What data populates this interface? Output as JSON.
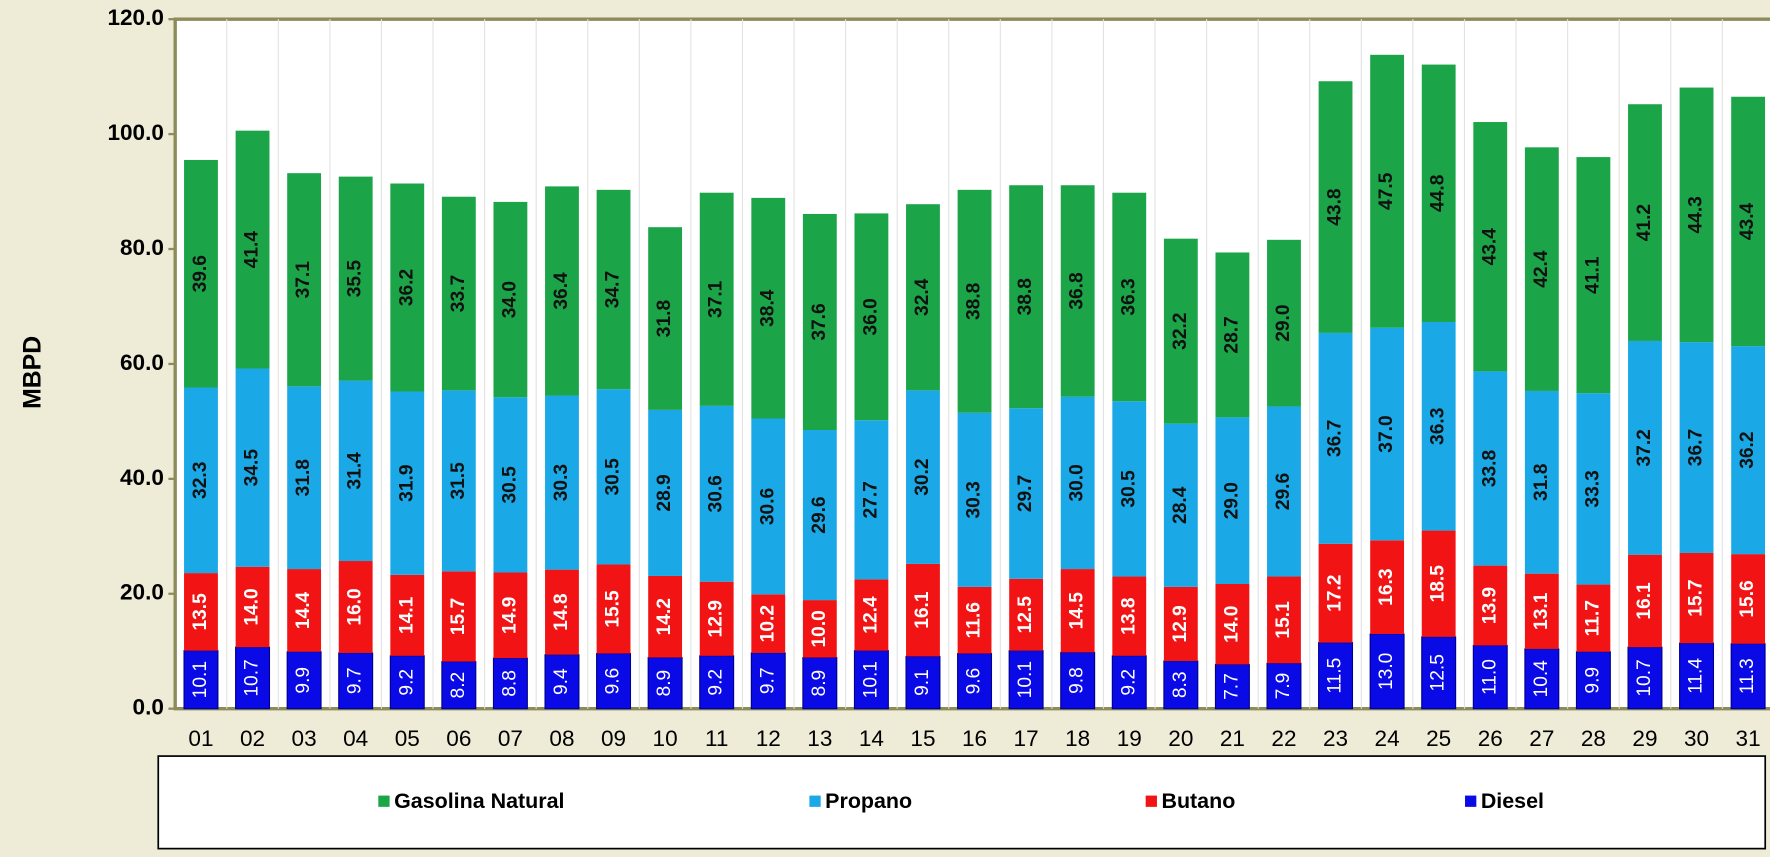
{
  "chart_data": {
    "type": "stacked_bar",
    "y_label": "MBPD",
    "categories": [
      "01",
      "02",
      "03",
      "04",
      "05",
      "06",
      "07",
      "08",
      "09",
      "10",
      "11",
      "12",
      "13",
      "14",
      "15",
      "16",
      "17",
      "18",
      "19",
      "20",
      "21",
      "22",
      "23",
      "24",
      "25",
      "26",
      "27",
      "28",
      "29",
      "30",
      "31"
    ],
    "ylim": [
      0,
      120
    ],
    "yticks": [
      {
        "value": 0,
        "label": "0.0"
      },
      {
        "value": 20,
        "label": "20.0"
      },
      {
        "value": 40,
        "label": "40.0"
      },
      {
        "value": 60,
        "label": "60.0"
      },
      {
        "value": 80,
        "label": "80.0"
      },
      {
        "value": 100,
        "label": "100.0"
      },
      {
        "value": 120,
        "label": "120.0"
      }
    ],
    "series": [
      {
        "name": "Diesel",
        "color": "#0a0ae6",
        "values": [
          10.1,
          10.7,
          9.9,
          9.7,
          9.2,
          8.2,
          8.8,
          9.4,
          9.6,
          8.9,
          9.2,
          9.7,
          8.9,
          10.1,
          9.1,
          9.6,
          10.1,
          9.8,
          9.2,
          8.3,
          7.7,
          7.9,
          11.5,
          13.0,
          12.5,
          11.0,
          10.4,
          9.9,
          10.7,
          11.4,
          11.3
        ],
        "value_labels": [
          "10.1",
          "10.7",
          "9.9",
          "9.7",
          "9.2",
          "8.2",
          "8.8",
          "9.4",
          "9.6",
          "8.9",
          "9.2",
          "9.7",
          "8.9",
          "10.1",
          "9.1",
          "9.6",
          "10.1",
          "9.8",
          "9.2",
          "8.3",
          "7.7",
          "7.9",
          "11.5",
          "13.0",
          "12.5",
          "11.0",
          "10.4",
          "9.9",
          "10.7",
          "11.4",
          "11.3"
        ]
      },
      {
        "name": "Butano",
        "color": "#f21414",
        "values": [
          13.5,
          14.0,
          14.4,
          16.0,
          14.1,
          15.7,
          14.9,
          14.8,
          15.5,
          14.2,
          12.9,
          10.2,
          10.0,
          12.4,
          16.1,
          11.6,
          12.5,
          14.5,
          13.8,
          12.9,
          14.0,
          15.1,
          17.2,
          16.3,
          18.5,
          13.9,
          13.1,
          11.7,
          16.1,
          15.7,
          15.6
        ],
        "value_labels": [
          "13.5",
          "14.0",
          "14.4",
          "16.0",
          "14.1",
          "15.7",
          "14.9",
          "14.8",
          "15.5",
          "14.2",
          "12.9",
          "10.2",
          "10.0",
          "12.4",
          "16.1",
          "11.6",
          "12.5",
          "14.5",
          "13.8",
          "12.9",
          "14.0",
          "15.1",
          "17.2",
          "16.3",
          "18.5",
          "13.9",
          "13.1",
          "11.7",
          "16.1",
          "15.7",
          "15.6"
        ]
      },
      {
        "name": "Propano",
        "color": "#1aa9e6",
        "values": [
          32.3,
          34.5,
          31.8,
          31.4,
          31.9,
          31.5,
          30.5,
          30.3,
          30.5,
          28.9,
          30.6,
          30.6,
          29.6,
          27.7,
          30.2,
          30.3,
          29.7,
          30.0,
          30.5,
          28.4,
          29.0,
          29.6,
          36.7,
          37.0,
          36.3,
          33.8,
          31.8,
          33.3,
          37.2,
          36.7,
          36.2
        ],
        "value_labels": [
          "32.3",
          "34.5",
          "31.8",
          "31.4",
          "31.9",
          "31.5",
          "30.5",
          "30.3",
          "30.5",
          "28.9",
          "30.6",
          "30.6",
          "29.6",
          "27.7",
          "30.2",
          "30.3",
          "29.7",
          "30.0",
          "30.5",
          "28.4",
          "29.0",
          "29.6",
          "36.7",
          "37.0",
          "36.3",
          "33.8",
          "31.8",
          "33.3",
          "37.2",
          "36.7",
          "36.2"
        ]
      },
      {
        "name": "Gasolina Natural",
        "color": "#1ca548",
        "values": [
          39.6,
          41.4,
          37.1,
          35.5,
          36.2,
          33.7,
          34.0,
          36.4,
          34.7,
          31.8,
          37.1,
          38.4,
          37.6,
          36.0,
          32.4,
          38.8,
          38.8,
          36.8,
          36.3,
          32.2,
          28.7,
          29.0,
          43.8,
          47.5,
          44.8,
          43.4,
          42.4,
          41.1,
          41.2,
          44.3,
          43.4
        ],
        "value_labels": [
          "39.6",
          "41.4",
          "37.1",
          "35.5",
          "36.2",
          "33.7",
          "34.0",
          "36.4",
          "34.7",
          "31.8",
          "37.1",
          "38.4",
          "37.6",
          "36.0",
          "32.4",
          "38.8",
          "38.8",
          "36.8",
          "36.3",
          "32.2",
          "28.7",
          "29.0",
          "43.8",
          "47.5",
          "44.8",
          "43.4",
          "42.4",
          "41.1",
          "41.2",
          "44.3",
          "43.4"
        ]
      }
    ]
  }
}
